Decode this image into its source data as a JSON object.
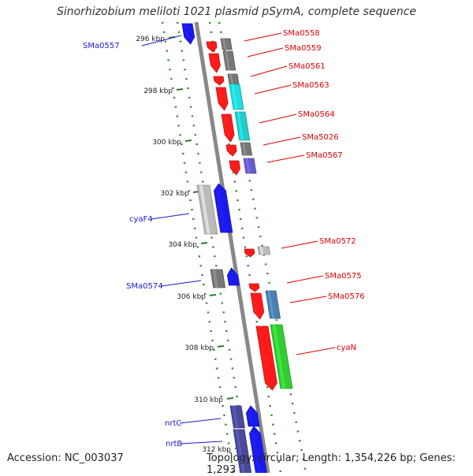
{
  "title": "Sinorhizobium meliloti 1021 plasmid pSymA, complete sequence",
  "footer": {
    "accession": "Accession: NC_003037",
    "summary": "Topology: circular; Length: 1,354,226 bp; Genes: 1,293"
  },
  "ticks": [
    "296 kbp",
    "298 kbp",
    "300 kbp",
    "302 kbp",
    "304 kbp",
    "306 kbp",
    "308 kbp",
    "310 kbp",
    "312 kbp"
  ],
  "labels_left": [
    "SMa0557",
    "cyaF4",
    "SMa0574",
    "nrtC",
    "nrtB"
  ],
  "labels_right": [
    "SMa0558",
    "SMa0559",
    "SMa0561",
    "SMa0563",
    "SMa0564",
    "SMa5026",
    "SMa0567",
    "SMa0572",
    "SMa0575",
    "SMa0576",
    "cyaN"
  ],
  "colors": {
    "backbone": "#888888",
    "track_dots": "#2a8a2a",
    "tick": "#2a7a2a",
    "label_left": "#1a1acc",
    "label_right": "#dd0000",
    "red": "#ff1a1a",
    "blue": "#1a1aee",
    "grey": "#777777",
    "lightgrey": "#bbbbbb",
    "cyan": "#22dddd",
    "teal": "#22cccc",
    "slate": "#4a7fb0",
    "green": "#33cc33",
    "violet": "#6a5acd",
    "darkviolet": "#4a4a9a"
  }
}
